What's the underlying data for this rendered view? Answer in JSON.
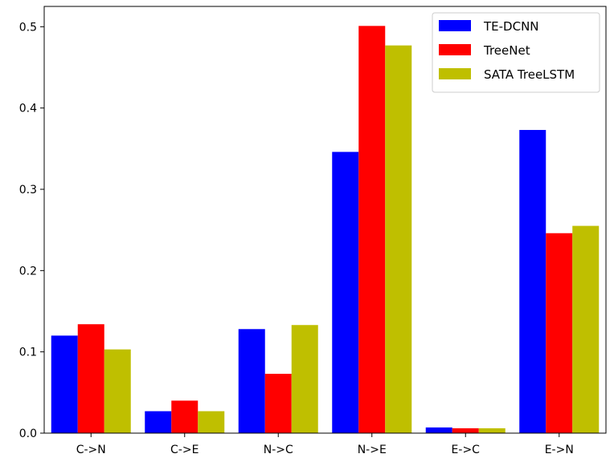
{
  "chart_data": {
    "type": "bar",
    "title": "",
    "xlabel": "",
    "ylabel": "",
    "categories": [
      "C->N",
      "C->E",
      "N->C",
      "N->E",
      "E->C",
      "E->N"
    ],
    "series": [
      {
        "name": "TE-DCNN",
        "color": "#0000ff",
        "values": [
          0.12,
          0.027,
          0.128,
          0.346,
          0.007,
          0.373
        ]
      },
      {
        "name": "TreeNet",
        "color": "#ff0000",
        "values": [
          0.134,
          0.04,
          0.073,
          0.501,
          0.006,
          0.246
        ]
      },
      {
        "name": "SATA TreeLSTM",
        "color": "#bfbf00",
        "values": [
          0.103,
          0.027,
          0.133,
          0.477,
          0.006,
          0.255
        ]
      }
    ],
    "ylim": [
      0,
      0.525
    ],
    "yticks": [
      "0.0",
      "0.1",
      "0.2",
      "0.3",
      "0.4",
      "0.5"
    ],
    "grid": false,
    "legend_position": "top-right"
  }
}
